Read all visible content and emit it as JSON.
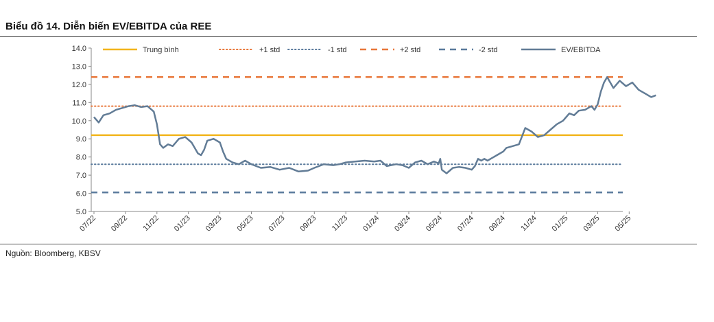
{
  "title": "Biểu đồ 14. Diễn biến EV/EBITDA của REE",
  "source": "Nguồn: Bloomberg, KBSV",
  "chart_data": {
    "type": "line",
    "ylim": [
      5.0,
      14.0
    ],
    "yticks": [
      "5.0",
      "6.0",
      "7.0",
      "8.0",
      "9.0",
      "10.0",
      "11.0",
      "12.0",
      "13.0",
      "14.0"
    ],
    "xticks": [
      "07/22",
      "09/22",
      "11/22",
      "01/23",
      "03/23",
      "05/23",
      "07/23",
      "09/23",
      "11/23",
      "01/24",
      "03/24",
      "05/24",
      "07/24",
      "09/24",
      "11/24",
      "01/25",
      "03/25",
      "05/25"
    ],
    "legend_position": "top",
    "series": [
      {
        "name": "Trung bình",
        "style": "solid",
        "color": "#F2B51C",
        "value": 9.2
      },
      {
        "name": "+1 std",
        "style": "dotted",
        "color": "#E8773A",
        "value": 10.8
      },
      {
        "name": "-1 std",
        "style": "dotted",
        "color": "#5A7A9C",
        "value": 7.6
      },
      {
        "name": "+2 std",
        "style": "dashed",
        "color": "#E8773A",
        "value": 12.4
      },
      {
        "name": "-2 std",
        "style": "dashed",
        "color": "#5A7A9C",
        "value": 6.05
      },
      {
        "name": "EV/EBITDA",
        "style": "solid",
        "color": "#627C96",
        "t": [
          0,
          0.15,
          0.3,
          0.5,
          0.7,
          0.9,
          1.1,
          1.3,
          1.5,
          1.7,
          1.9,
          2.0,
          2.1,
          2.2,
          2.35,
          2.5,
          2.7,
          2.9,
          3.1,
          3.2,
          3.3,
          3.4,
          3.5,
          3.6,
          3.8,
          4.0,
          4.1,
          4.2,
          4.4,
          4.6,
          4.8,
          5.0,
          5.3,
          5.6,
          5.9,
          6.2,
          6.5,
          6.8,
          7.0,
          7.3,
          7.6,
          7.8,
          8.0,
          8.3,
          8.6,
          8.9,
          9.1,
          9.3,
          9.6,
          9.8,
          10.0,
          10.2,
          10.4,
          10.6,
          10.8,
          10.95,
          11.0,
          11.05,
          11.2,
          11.4,
          11.6,
          11.8,
          12.0,
          12.1,
          12.2,
          12.3,
          12.4,
          12.5,
          12.6,
          12.7,
          12.8,
          12.9,
          13.0,
          13.1,
          13.3,
          13.5,
          13.7,
          13.9,
          14.1,
          14.3,
          14.5,
          14.7,
          14.9,
          15.0,
          15.1,
          15.25,
          15.4,
          15.6,
          15.8,
          15.9,
          16.0,
          16.1,
          16.2,
          16.3,
          16.5,
          16.7,
          16.9,
          17.1,
          17.3,
          17.5,
          17.7,
          17.85
        ],
        "values": [
          10.2,
          9.9,
          10.3,
          10.4,
          10.6,
          10.7,
          10.8,
          10.85,
          10.75,
          10.8,
          10.5,
          9.8,
          8.7,
          8.5,
          8.7,
          8.6,
          9.0,
          9.1,
          8.8,
          8.5,
          8.2,
          8.1,
          8.4,
          8.9,
          9.0,
          8.8,
          8.3,
          7.9,
          7.7,
          7.6,
          7.8,
          7.6,
          7.4,
          7.45,
          7.3,
          7.4,
          7.2,
          7.25,
          7.4,
          7.6,
          7.55,
          7.6,
          7.7,
          7.75,
          7.8,
          7.75,
          7.8,
          7.5,
          7.6,
          7.55,
          7.4,
          7.7,
          7.8,
          7.6,
          7.75,
          7.65,
          7.9,
          7.3,
          7.1,
          7.4,
          7.45,
          7.4,
          7.3,
          7.5,
          7.9,
          7.8,
          7.9,
          7.8,
          7.9,
          8.0,
          8.1,
          8.2,
          8.3,
          8.5,
          8.6,
          8.7,
          9.6,
          9.4,
          9.1,
          9.2,
          9.5,
          9.8,
          10.0,
          10.2,
          10.4,
          10.3,
          10.55,
          10.6,
          10.8,
          10.6,
          10.9,
          11.6,
          12.1,
          12.4,
          11.8,
          12.2,
          11.9,
          12.1,
          11.7,
          11.5,
          11.3,
          11.4
        ]
      }
    ]
  }
}
